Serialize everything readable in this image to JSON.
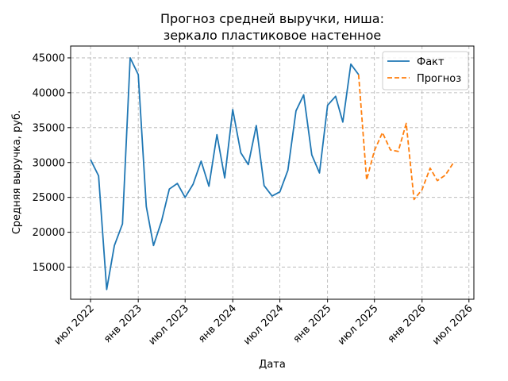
{
  "chart_data": {
    "type": "line",
    "title_lines": [
      "Прогноз средней выручки, ниша:",
      "зеркало пластиковое настенное"
    ],
    "xlabel": "Дата",
    "ylabel": "Средняя выручка, руб.",
    "x_tick_labels": [
      {
        "date": "2022-07-01",
        "label": "июл 2022"
      },
      {
        "date": "2023-01-01",
        "label": "янв 2023"
      },
      {
        "date": "2023-07-01",
        "label": "июл 2023"
      },
      {
        "date": "2024-01-01",
        "label": "янв 2024"
      },
      {
        "date": "2024-07-01",
        "label": "июл 2024"
      },
      {
        "date": "2025-01-01",
        "label": "янв 2025"
      },
      {
        "date": "2025-07-01",
        "label": "июл 2025"
      },
      {
        "date": "2026-01-01",
        "label": "янв 2026"
      },
      {
        "date": "2026-07-01",
        "label": "июл 2026"
      }
    ],
    "y_ticks": [
      15000,
      20000,
      25000,
      30000,
      35000,
      40000,
      45000
    ],
    "xlim": [
      "2022-04-15",
      "2026-07-20"
    ],
    "ylim": [
      10400,
      46700
    ],
    "grid": true,
    "legend_position": "top-right",
    "series": [
      {
        "name": "Факт",
        "color": "#1f77b4",
        "style": "solid",
        "points": [
          [
            "2022-07-01",
            30400
          ],
          [
            "2022-08-01",
            28100
          ],
          [
            "2022-09-01",
            11800
          ],
          [
            "2022-10-01",
            18100
          ],
          [
            "2022-11-01",
            21200
          ],
          [
            "2022-12-01",
            45000
          ],
          [
            "2023-01-01",
            42600
          ],
          [
            "2023-02-01",
            23700
          ],
          [
            "2023-03-01",
            18100
          ],
          [
            "2023-04-01",
            21600
          ],
          [
            "2023-05-01",
            26200
          ],
          [
            "2023-06-01",
            27000
          ],
          [
            "2023-07-01",
            25000
          ],
          [
            "2023-08-01",
            26900
          ],
          [
            "2023-09-01",
            30200
          ],
          [
            "2023-10-01",
            26600
          ],
          [
            "2023-11-01",
            34000
          ],
          [
            "2023-12-01",
            27800
          ],
          [
            "2024-01-01",
            37600
          ],
          [
            "2024-02-01",
            31400
          ],
          [
            "2024-03-01",
            29700
          ],
          [
            "2024-04-01",
            35300
          ],
          [
            "2024-05-01",
            26700
          ],
          [
            "2024-06-01",
            25200
          ],
          [
            "2024-07-01",
            25800
          ],
          [
            "2024-08-01",
            28900
          ],
          [
            "2024-09-01",
            37400
          ],
          [
            "2024-10-01",
            39700
          ],
          [
            "2024-11-01",
            31100
          ],
          [
            "2024-12-01",
            28500
          ],
          [
            "2025-01-01",
            38200
          ],
          [
            "2025-02-01",
            39500
          ],
          [
            "2025-03-01",
            35800
          ],
          [
            "2025-04-01",
            44100
          ],
          [
            "2025-05-01",
            42600
          ]
        ]
      },
      {
        "name": "Прогноз",
        "color": "#ff7f0e",
        "style": "dashed",
        "points": [
          [
            "2025-05-01",
            42600
          ],
          [
            "2025-06-01",
            27500
          ],
          [
            "2025-07-01",
            31700
          ],
          [
            "2025-08-01",
            34300
          ],
          [
            "2025-09-01",
            31800
          ],
          [
            "2025-10-01",
            31600
          ],
          [
            "2025-11-01",
            35600
          ],
          [
            "2025-12-01",
            24700
          ],
          [
            "2026-01-01",
            26100
          ],
          [
            "2026-02-01",
            29200
          ],
          [
            "2026-03-01",
            27400
          ],
          [
            "2026-04-01",
            28200
          ],
          [
            "2026-05-01",
            29900
          ]
        ]
      }
    ]
  }
}
